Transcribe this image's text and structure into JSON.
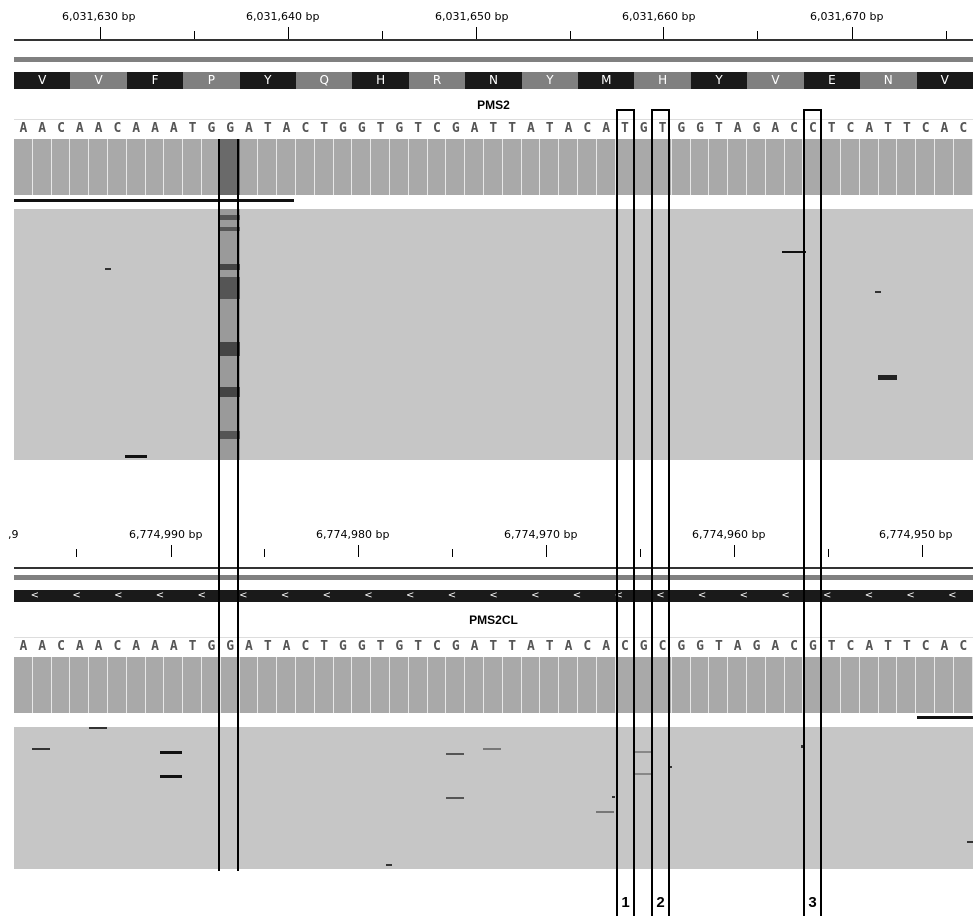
{
  "top_panel": {
    "ruler_labels": [
      "6,031,630 bp",
      "6,031,640 bp",
      "6,031,650 bp",
      "6,031,660 bp",
      "6,031,670 bp"
    ],
    "amino_acids": [
      "V",
      "V",
      "F",
      "P",
      "Y",
      "Q",
      "H",
      "R",
      "N",
      "Y",
      "M",
      "H",
      "Y",
      "V",
      "E",
      "N",
      "V"
    ],
    "gene_label": "PMS2",
    "sequence": [
      "A",
      "A",
      "C",
      "A",
      "A",
      "C",
      "A",
      "A",
      "A",
      "T",
      "G",
      "G",
      "A",
      "T",
      "A",
      "C",
      "T",
      "G",
      "G",
      "T",
      "G",
      "T",
      "C",
      "G",
      "A",
      "T",
      "T",
      "A",
      "T",
      "A",
      "C",
      "A",
      "T",
      "G",
      "T",
      "G",
      "G",
      "T",
      "A",
      "G",
      "A",
      "C",
      "C",
      "T",
      "C",
      "A",
      "T",
      "T",
      "C",
      "A",
      "C"
    ]
  },
  "bottom_panel": {
    "ruler_labels": [
      ",9",
      "6,774,990 bp",
      "6,774,980 bp",
      "6,774,970 bp",
      "6,774,960 bp",
      "6,774,950 bp"
    ],
    "strand_arrows": [
      "<",
      "<",
      "<",
      "<",
      "<",
      "<",
      "<",
      "<",
      "<",
      "<",
      "<",
      "<",
      "<",
      "<",
      "<",
      "<",
      "<",
      "<",
      "<",
      "<",
      "<",
      "<",
      "<"
    ],
    "gene_label": "PMS2CL",
    "sequence": [
      "A",
      "A",
      "C",
      "A",
      "A",
      "C",
      "A",
      "A",
      "A",
      "T",
      "G",
      "G",
      "A",
      "T",
      "A",
      "C",
      "T",
      "G",
      "G",
      "T",
      "G",
      "T",
      "C",
      "G",
      "A",
      "T",
      "T",
      "A",
      "T",
      "A",
      "C",
      "A",
      "C",
      "G",
      "C",
      "G",
      "G",
      "T",
      "A",
      "G",
      "A",
      "C",
      "G",
      "T",
      "C",
      "A",
      "T",
      "T",
      "C",
      "A",
      "C"
    ]
  },
  "annotations": {
    "labels": [
      "1",
      "2",
      "3"
    ]
  },
  "colors": {
    "aa_dark": "#1a1a1a",
    "aa_light": "#808080",
    "reads_bg": "#c6c6c6",
    "coverage": "#a9a9a9"
  }
}
